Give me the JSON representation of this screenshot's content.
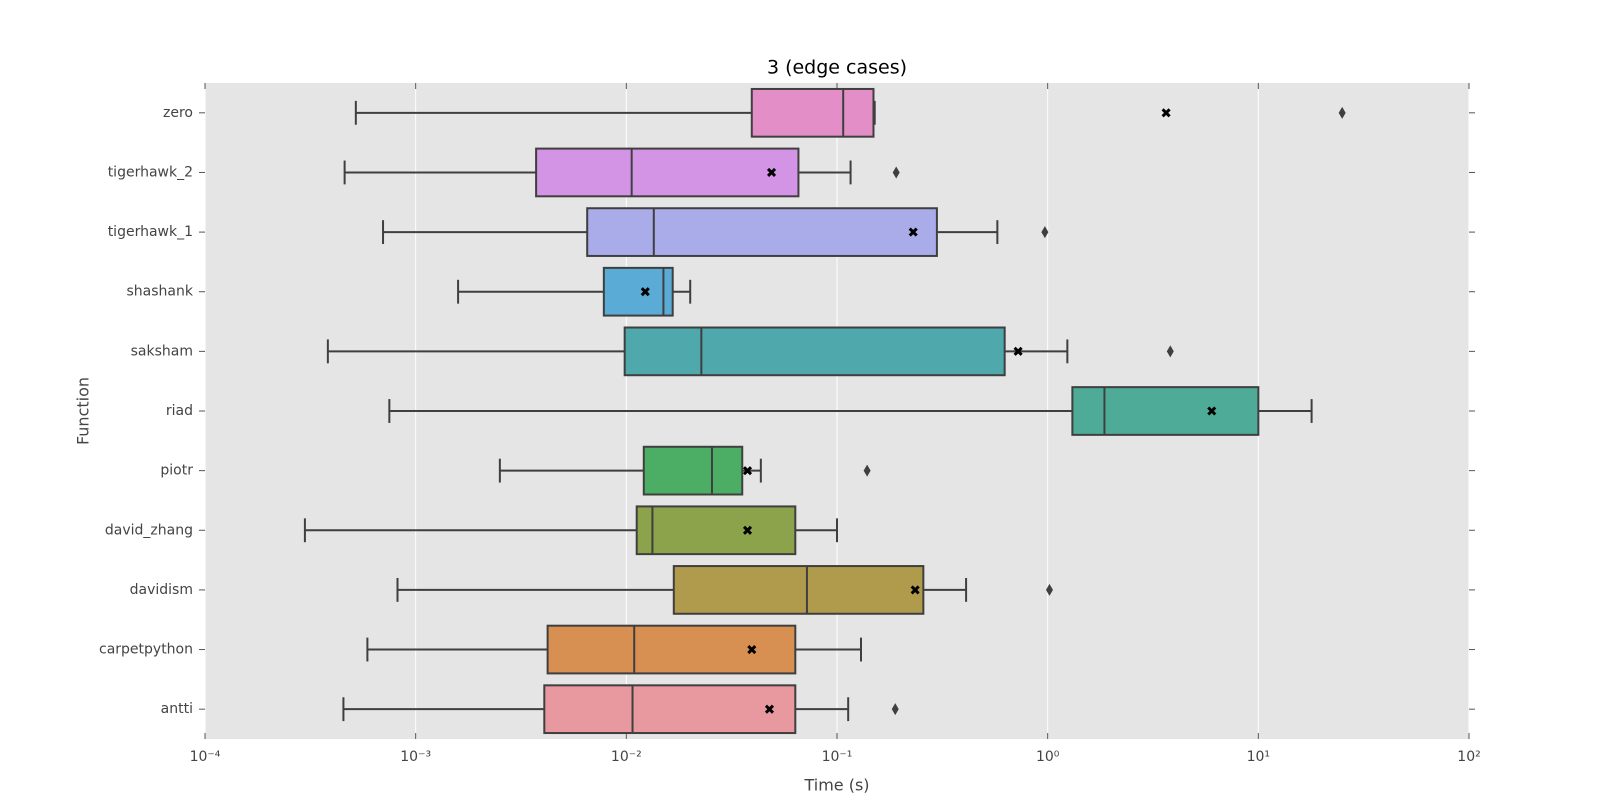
{
  "chart_data": {
    "type": "boxplot",
    "title": "3 (edge cases)",
    "x_label": "Time (s)",
    "y_label": "Function",
    "xscale": "log",
    "xlim": [
      0.0001,
      100
    ],
    "xticks": [
      {
        "value": 0.0001,
        "label": "10⁻⁴"
      },
      {
        "value": 0.001,
        "label": "10⁻³"
      },
      {
        "value": 0.01,
        "label": "10⁻²"
      },
      {
        "value": 0.1,
        "label": "10⁻¹"
      },
      {
        "value": 1,
        "label": "10⁰"
      },
      {
        "value": 10,
        "label": "10¹"
      },
      {
        "value": 100,
        "label": "10²"
      }
    ],
    "grid": true,
    "categories": [
      "zero",
      "tigerhawk_2",
      "tigerhawk_1",
      "shashank",
      "saksham",
      "riad",
      "piotr",
      "david_zhang",
      "davidism",
      "carpetpython",
      "antti"
    ],
    "series": [
      {
        "color": "#e48ec8",
        "whislo": 0.00052,
        "q1": 0.0394,
        "med": 0.107,
        "q3": 0.149,
        "whishi": 0.151,
        "mean": 3.65,
        "fliers": [
          25
        ]
      },
      {
        "color": "#d494e6",
        "whislo": 0.00046,
        "q1": 0.00373,
        "med": 0.0106,
        "q3": 0.0656,
        "whishi": 0.116,
        "mean": 0.0489,
        "fliers": [
          0.191
        ]
      },
      {
        "color": "#a9ace9",
        "whislo": 0.0007,
        "q1": 0.00652,
        "med": 0.0135,
        "q3": 0.298,
        "whishi": 0.577,
        "mean": 0.23,
        "fliers": [
          0.97
        ]
      },
      {
        "color": "#5aabd6",
        "whislo": 0.00159,
        "q1": 0.00782,
        "med": 0.015,
        "q3": 0.0166,
        "whishi": 0.0201,
        "mean": 0.0123,
        "fliers": []
      },
      {
        "color": "#4fa8ac",
        "whislo": 0.000383,
        "q1": 0.00982,
        "med": 0.0227,
        "q3": 0.625,
        "whishi": 1.24,
        "mean": 0.724,
        "fliers": [
          3.82
        ]
      },
      {
        "color": "#4eab98",
        "whislo": 0.00075,
        "q1": 1.31,
        "med": 1.86,
        "q3": 10.0,
        "whishi": 17.9,
        "mean": 6.01,
        "fliers": []
      },
      {
        "color": "#4cae64",
        "whislo": 0.00251,
        "q1": 0.0121,
        "med": 0.0255,
        "q3": 0.0355,
        "whishi": 0.0435,
        "mean": 0.0376,
        "fliers": [
          0.139
        ]
      },
      {
        "color": "#8ca34c",
        "whislo": 0.000298,
        "q1": 0.0112,
        "med": 0.0133,
        "q3": 0.0634,
        "whishi": 0.1,
        "mean": 0.0376,
        "fliers": []
      },
      {
        "color": "#b09a4c",
        "whislo": 0.00082,
        "q1": 0.0168,
        "med": 0.072,
        "q3": 0.257,
        "whishi": 0.41,
        "mean": 0.235,
        "fliers": [
          1.02
        ]
      },
      {
        "color": "#d88f52",
        "whislo": 0.00059,
        "q1": 0.00423,
        "med": 0.0109,
        "q3": 0.0634,
        "whishi": 0.13,
        "mean": 0.0394,
        "fliers": []
      },
      {
        "color": "#e8989f",
        "whislo": 0.000454,
        "q1": 0.00408,
        "med": 0.0107,
        "q3": 0.0634,
        "whishi": 0.113,
        "mean": 0.0478,
        "fliers": [
          0.189
        ]
      }
    ]
  }
}
